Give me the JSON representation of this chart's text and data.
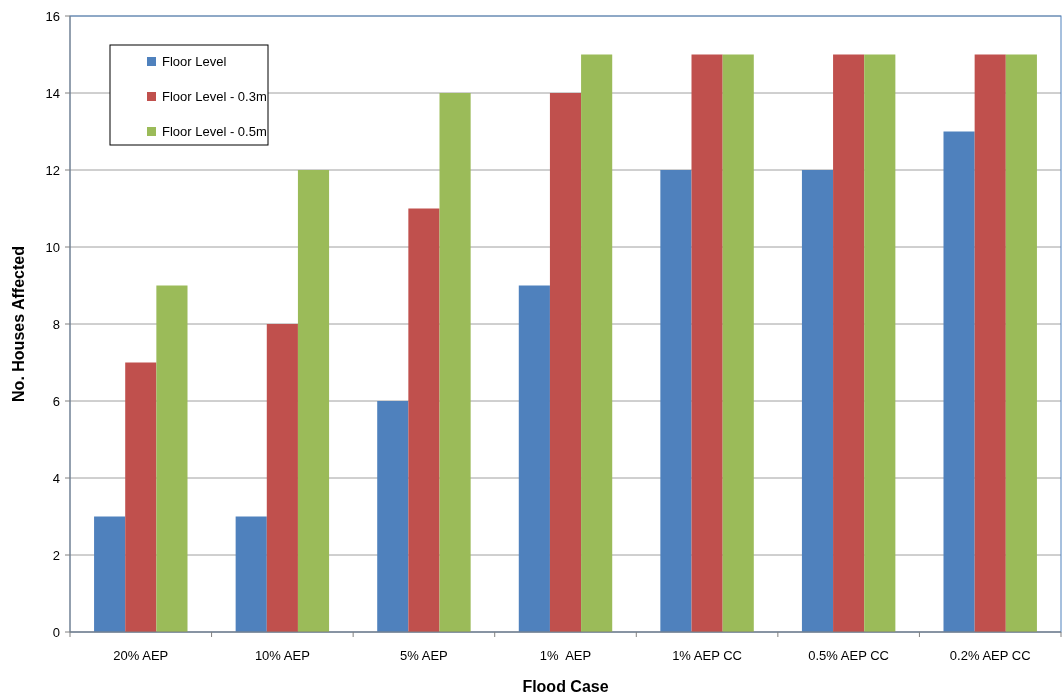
{
  "chart_data": {
    "type": "bar",
    "xlabel": "Flood Case",
    "ylabel": "No. Houses Affected",
    "categories": [
      "20% AEP",
      "10% AEP",
      "5% AEP",
      "1%  AEP",
      "1% AEP CC",
      "0.5% AEP CC",
      "0.2% AEP CC"
    ],
    "series": [
      {
        "name": "Floor Level",
        "color": "#4f81bd",
        "values": [
          3,
          3,
          6,
          9,
          12,
          12,
          13
        ]
      },
      {
        "name": "Floor Level - 0.3m",
        "color": "#c0504d",
        "values": [
          7,
          8,
          11,
          14,
          15,
          15,
          15
        ]
      },
      {
        "name": "Floor Level - 0.5m",
        "color": "#9bbb59",
        "values": [
          9,
          12,
          14,
          15,
          15,
          15,
          15
        ]
      }
    ],
    "ylim": [
      0,
      16
    ],
    "yticks": [
      0,
      2,
      4,
      6,
      8,
      10,
      12,
      14,
      16
    ],
    "grid": "y",
    "legend": "top left"
  }
}
